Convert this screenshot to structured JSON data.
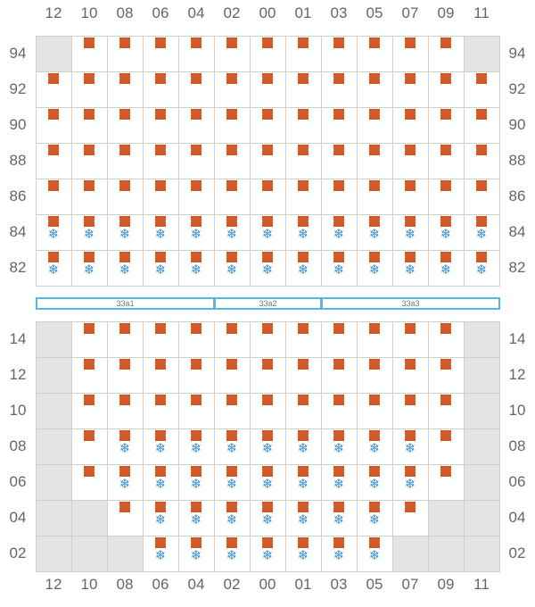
{
  "colors": {
    "box": "#d35a2a",
    "reefer": "#3a8fd8",
    "zone_border": "#55b9de",
    "unavailable": "#e4e4e6"
  },
  "icons": {
    "box": "orange-square-container-icon",
    "reefer": "snowflake-icon"
  },
  "columns": [
    "12",
    "10",
    "08",
    "06",
    "04",
    "02",
    "00",
    "01",
    "03",
    "05",
    "07",
    "09",
    "11"
  ],
  "upper": {
    "rows": [
      {
        "tier": "94",
        "cells": [
          "G",
          "B",
          "B",
          "B",
          "B",
          "B",
          "B",
          "B",
          "B",
          "B",
          "B",
          "B",
          "G"
        ]
      },
      {
        "tier": "92",
        "cells": [
          "B",
          "B",
          "B",
          "B",
          "B",
          "B",
          "B",
          "B",
          "B",
          "B",
          "B",
          "B",
          "B"
        ]
      },
      {
        "tier": "90",
        "cells": [
          "B",
          "B",
          "B",
          "B",
          "B",
          "B",
          "B",
          "B",
          "B",
          "B",
          "B",
          "B",
          "B"
        ]
      },
      {
        "tier": "88",
        "cells": [
          "B",
          "B",
          "B",
          "B",
          "B",
          "B",
          "B",
          "B",
          "B",
          "B",
          "B",
          "B",
          "B"
        ]
      },
      {
        "tier": "86",
        "cells": [
          "B",
          "B",
          "B",
          "B",
          "B",
          "B",
          "B",
          "B",
          "B",
          "B",
          "B",
          "B",
          "B"
        ]
      },
      {
        "tier": "84",
        "cells": [
          "BR",
          "BR",
          "BR",
          "BR",
          "BR",
          "BR",
          "BR",
          "BR",
          "BR",
          "BR",
          "BR",
          "BR",
          "BR"
        ]
      },
      {
        "tier": "82",
        "cells": [
          "BR",
          "BR",
          "BR",
          "BR",
          "BR",
          "BR",
          "BR",
          "BR",
          "BR",
          "BR",
          "BR",
          "BR",
          "BR"
        ]
      }
    ]
  },
  "zones": [
    {
      "label": "33a1",
      "from": 0,
      "to": 4
    },
    {
      "label": "33a2",
      "from": 5,
      "to": 7
    },
    {
      "label": "33a3",
      "from": 8,
      "to": 12
    }
  ],
  "lower": {
    "rows": [
      {
        "tier": "14",
        "cells": [
          "G",
          "B",
          "B",
          "B",
          "B",
          "B",
          "B",
          "B",
          "B",
          "B",
          "B",
          "B",
          "G"
        ]
      },
      {
        "tier": "12",
        "cells": [
          "G",
          "B",
          "B",
          "B",
          "B",
          "B",
          "B",
          "B",
          "B",
          "B",
          "B",
          "B",
          "G"
        ]
      },
      {
        "tier": "10",
        "cells": [
          "G",
          "B",
          "B",
          "B",
          "B",
          "B",
          "B",
          "B",
          "B",
          "B",
          "B",
          "B",
          "G"
        ]
      },
      {
        "tier": "08",
        "cells": [
          "G",
          "B",
          "BR",
          "BR",
          "BR",
          "BR",
          "BR",
          "BR",
          "BR",
          "BR",
          "BR",
          "B",
          "G"
        ]
      },
      {
        "tier": "06",
        "cells": [
          "G",
          "B",
          "BR",
          "BR",
          "BR",
          "BR",
          "BR",
          "BR",
          "BR",
          "BR",
          "BR",
          "B",
          "G"
        ]
      },
      {
        "tier": "04",
        "cells": [
          "G",
          "G",
          "B",
          "BR",
          "BR",
          "BR",
          "BR",
          "BR",
          "BR",
          "BR",
          "B",
          "G",
          "G"
        ]
      },
      {
        "tier": "02",
        "cells": [
          "G",
          "G",
          "G",
          "BR",
          "BR",
          "BR",
          "BR",
          "BR",
          "BR",
          "BR",
          "G",
          "G",
          "G"
        ]
      }
    ]
  }
}
